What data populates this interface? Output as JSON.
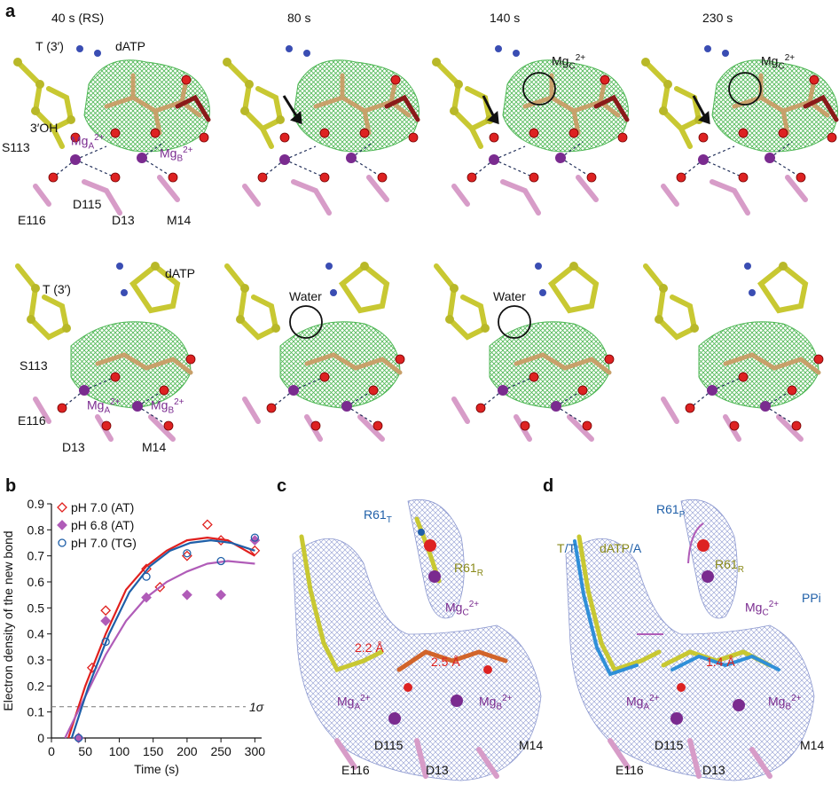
{
  "figure": {
    "panel_letters": [
      "a",
      "b",
      "c",
      "d"
    ],
    "time_points": [
      "40 s (RS)",
      "80 s",
      "140 s",
      "230 s"
    ],
    "panel_a": {
      "top_labels": [
        "T (3′)",
        "dATP",
        "3′OH",
        "S113",
        "E116",
        "D115",
        "D13",
        "M14"
      ],
      "mgA": "Mg",
      "mgA_sub": "A",
      "mgA_sup": "2+",
      "mgB": "Mg",
      "mgB_sub": "B",
      "mgB_sup": "2+",
      "mgC": "Mg",
      "mgC_sub": "C",
      "mgC_sup": "2+",
      "bottom_labels": [
        "T (3′)",
        "dATP",
        "S113",
        "E116",
        "D13",
        "M14"
      ],
      "water": "Water"
    },
    "panel_c": {
      "labels": {
        "r61t": "R61",
        "r61t_sub": "T",
        "r61r": "R61",
        "r61r_sub": "R",
        "d2_2": "2.2 Å",
        "d2_5": "2.5 Å",
        "d115": "D115",
        "e116": "E116",
        "d13": "D13",
        "m14": "M14"
      }
    },
    "panel_d": {
      "labels": {
        "r61p": "R61",
        "r61p_sub": "P",
        "r61r": "R61",
        "r61r_sub": "R",
        "tt1": "T",
        "tt2": "/T",
        "datp": "dATP",
        "datp2": "/A",
        "ppi": "PPi",
        "d1_4": "1.4 Å",
        "d115": "D115",
        "e116": "E116",
        "d13": "D13",
        "m14": "M14"
      }
    }
  },
  "chart_data": {
    "type": "scatter",
    "xlabel": "Time (s)",
    "ylabel": "Electron density of the new bond",
    "xlim": [
      0,
      310
    ],
    "ylim": [
      0,
      0.9
    ],
    "xticks": [
      0,
      50,
      100,
      150,
      200,
      250,
      300
    ],
    "yticks": [
      0,
      0.1,
      0.2,
      0.3,
      0.4,
      0.5,
      0.6,
      0.7,
      0.8,
      0.9
    ],
    "threshold": {
      "y": 0.12,
      "label": "1σ"
    },
    "legend_position": "top-left",
    "series": [
      {
        "name": "pH 7.0 (AT)",
        "color": "#e0201e",
        "marker": "diamond-open",
        "x": [
          40,
          60,
          80,
          140,
          160,
          200,
          230,
          250,
          300
        ],
        "y": [
          0.0,
          0.27,
          0.49,
          0.65,
          0.58,
          0.7,
          0.82,
          0.76,
          0.72
        ],
        "curve": [
          [
            25,
            0.0
          ],
          [
            50,
            0.2
          ],
          [
            80,
            0.4
          ],
          [
            110,
            0.57
          ],
          [
            140,
            0.66
          ],
          [
            170,
            0.72
          ],
          [
            200,
            0.76
          ],
          [
            230,
            0.77
          ],
          [
            260,
            0.76
          ],
          [
            300,
            0.7
          ]
        ]
      },
      {
        "name": "pH 6.8 (AT)",
        "color": "#b05cb8",
        "marker": "diamond-filled",
        "x": [
          40,
          80,
          140,
          200,
          250,
          300
        ],
        "y": [
          0.0,
          0.45,
          0.54,
          0.55,
          0.55,
          0.76
        ],
        "curve": [
          [
            20,
            0.0
          ],
          [
            50,
            0.16
          ],
          [
            80,
            0.32
          ],
          [
            110,
            0.45
          ],
          [
            140,
            0.54
          ],
          [
            170,
            0.6
          ],
          [
            200,
            0.64
          ],
          [
            230,
            0.67
          ],
          [
            260,
            0.68
          ],
          [
            300,
            0.67
          ]
        ]
      },
      {
        "name": "pH 7.0 (TG)",
        "color": "#1f5fa8",
        "marker": "circle-open",
        "x": [
          40,
          80,
          140,
          200,
          250,
          300
        ],
        "y": [
          0.0,
          0.37,
          0.62,
          0.71,
          0.68,
          0.77
        ],
        "curve": [
          [
            30,
            0.0
          ],
          [
            55,
            0.2
          ],
          [
            85,
            0.4
          ],
          [
            115,
            0.56
          ],
          [
            145,
            0.66
          ],
          [
            175,
            0.72
          ],
          [
            205,
            0.75
          ],
          [
            235,
            0.76
          ],
          [
            265,
            0.75
          ],
          [
            300,
            0.72
          ]
        ]
      }
    ]
  }
}
